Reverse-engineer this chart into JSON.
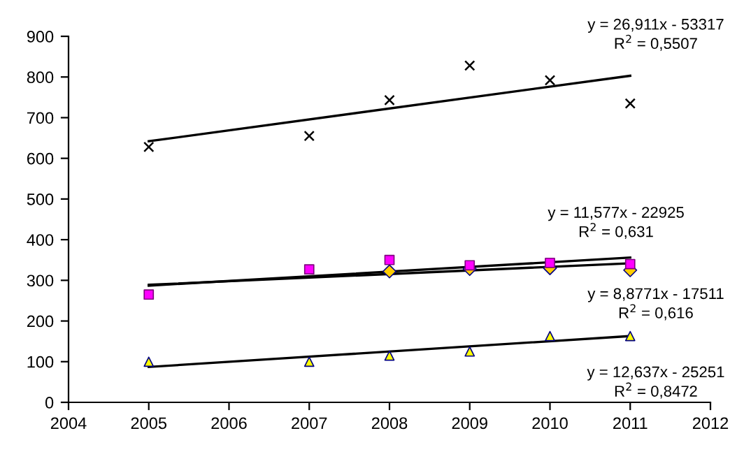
{
  "chart_data": {
    "type": "scatter",
    "xlim": [
      2004,
      2012
    ],
    "xticks": [
      2004,
      2005,
      2006,
      2007,
      2008,
      2009,
      2010,
      2011,
      2012
    ],
    "ylim": [
      0,
      900
    ],
    "yticks": [
      0,
      100,
      200,
      300,
      400,
      500,
      600,
      700,
      800,
      900
    ],
    "grid": false,
    "legend": false,
    "series": [
      {
        "marker": "cross",
        "color": "#000000",
        "x": [
          2005,
          2007,
          2008,
          2009,
          2010,
          2011
        ],
        "values": [
          628,
          655,
          743,
          828,
          792,
          735
        ]
      },
      {
        "marker": "square",
        "color": "#ff00ff",
        "x": [
          2005,
          2007,
          2008,
          2009,
          2010,
          2011
        ],
        "values": [
          265,
          327,
          350,
          337,
          343,
          340
        ]
      },
      {
        "marker": "diamond",
        "color": "#ffcc00",
        "x": [
          2008,
          2009,
          2010,
          2011
        ],
        "values": [
          322,
          328,
          330,
          325
        ]
      },
      {
        "marker": "triangle",
        "color": "#ffff00",
        "x": [
          2005,
          2007,
          2008,
          2009,
          2010,
          2011
        ],
        "values": [
          100,
          100,
          115,
          125,
          163,
          163
        ]
      },
      {
        "type": "line",
        "marker": "none",
        "color": "#000000",
        "x": [
          2005,
          2011
        ],
        "values": [
          642,
          803
        ]
      },
      {
        "type": "line",
        "marker": "none",
        "color": "#000000",
        "x": [
          2005,
          2011
        ],
        "values": [
          287,
          356
        ]
      },
      {
        "type": "line",
        "marker": "none",
        "color": "#000000",
        "x": [
          2005,
          2011
        ],
        "values": [
          289,
          342
        ]
      },
      {
        "type": "line",
        "marker": "none",
        "color": "#000000",
        "x": [
          2005,
          2011
        ],
        "values": [
          87,
          163
        ]
      }
    ],
    "annotations": [
      "y = 26,911x - 53317\nR$^{2}$ = 0,5507",
      "y = 11,577x - 22925\nR$^{2}$ = 0,631",
      "y = 8,8771x - 17511\nR$^{2}$ = 0,616",
      "y = 12,637x - 25251\nR$^{2}$ = 0,8472"
    ]
  }
}
